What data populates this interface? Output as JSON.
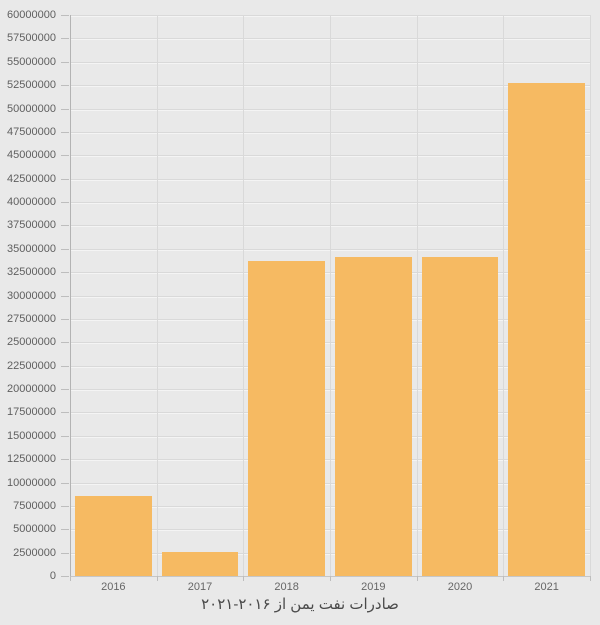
{
  "chart_data": {
    "type": "bar",
    "title": "صادرات نفت یمن از ۲۰۱۶-۲۰۲۱",
    "xlabel": "",
    "ylabel": "",
    "categories": [
      "2016",
      "2017",
      "2018",
      "2019",
      "2020",
      "2021"
    ],
    "values": [
      8600000,
      2600000,
      33700000,
      34150000,
      34100000,
      52700000
    ],
    "ylim": [
      0,
      60000000
    ],
    "ytick_step": 2500000,
    "yticks": [
      0,
      2500000,
      5000000,
      7500000,
      10000000,
      12500000,
      15000000,
      17500000,
      20000000,
      22500000,
      25000000,
      27500000,
      30000000,
      32500000,
      35000000,
      37500000,
      40000000,
      42500000,
      45000000,
      47500000,
      50000000,
      52500000,
      55000000,
      57500000,
      60000000
    ],
    "grid": true,
    "legend": false,
    "colors": {
      "bar": "#f6ba62",
      "background": "#e9e9e9",
      "gridline": "#d9d9d9",
      "y_axis_line": "#b3b3b3",
      "x_axis_line": "#c6c6c6",
      "tick_mark": "#bdbdbd",
      "y_label_text": "#5f5f5f",
      "x_label_text": "#666666",
      "title_text": "#4a4a4a"
    }
  }
}
